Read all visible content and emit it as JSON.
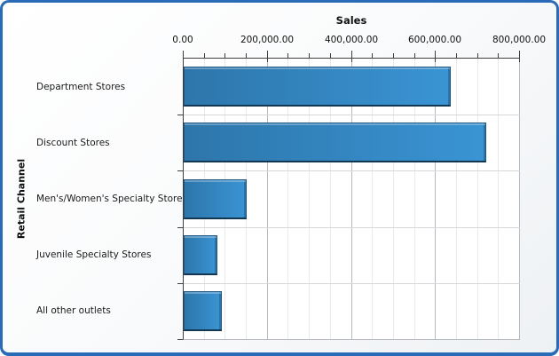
{
  "chart_data": {
    "type": "bar",
    "orientation": "horizontal",
    "title": "Sales",
    "ylabel": "Retail Channel",
    "categories": [
      "Department Stores",
      "Discount Stores",
      "Men's/Women's Specialty Stores",
      "Juvenile Specialty Stores",
      "All other outlets"
    ],
    "values": [
      635000,
      720000,
      150000,
      80000,
      90000
    ],
    "xlim": [
      0,
      800000
    ],
    "x_major_step": 200000,
    "x_minor_step": 50000,
    "x_tick_labels": [
      "0.00",
      "200,000.00",
      "400,000.00",
      "600,000.00",
      "800,000.00"
    ],
    "grid": true,
    "legend": false,
    "colors": {
      "bar_gradient_start": "#2d76ab",
      "bar_gradient_end": "#3a94d3",
      "bar_border": "#143751",
      "frame_border": "#2a6bb8",
      "major_grid": "#b7bbc0",
      "minor_grid": "#e7e9ec",
      "axis_line": "#3f3f3f"
    }
  }
}
